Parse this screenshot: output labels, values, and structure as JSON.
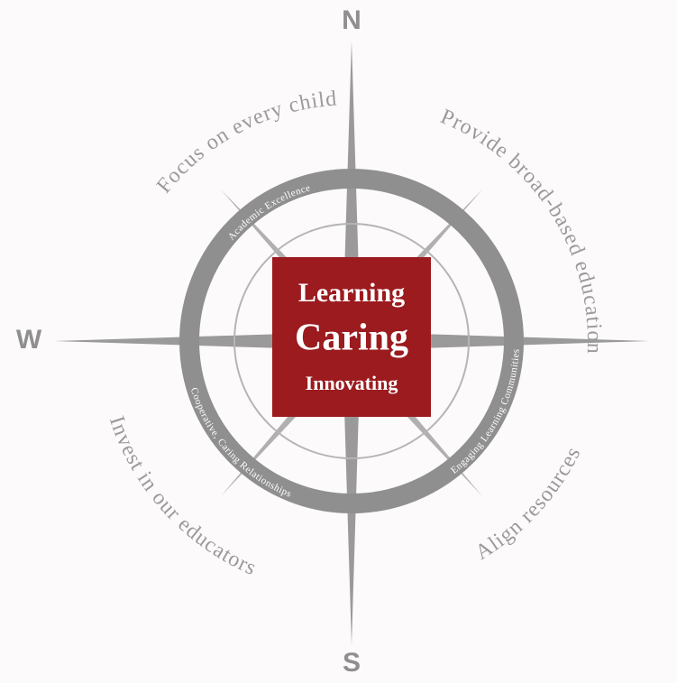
{
  "compass": {
    "north": "N",
    "south": "S",
    "west": "W"
  },
  "outer_ring": [
    "Focus on every child",
    "Provide broad-based education",
    "Align resources",
    "Invest in our educators"
  ],
  "inner_ring": [
    "Academic Excellence",
    "Engaging Learning Communities",
    "Cooperative, Caring Relationships"
  ],
  "center": [
    "Learning",
    "Caring",
    "Innovating"
  ]
}
